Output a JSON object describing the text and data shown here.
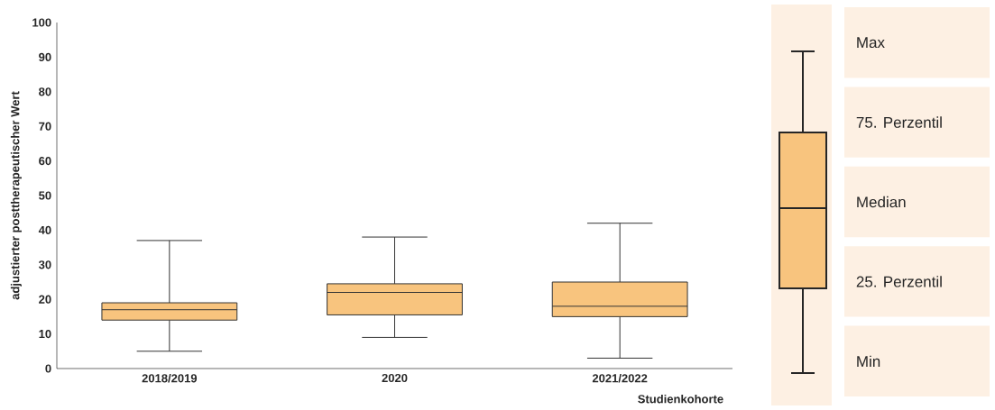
{
  "chart_data": [
    {
      "type": "box",
      "ylabel": "adjustierter posttherapeutischer Wert",
      "xlabel": "Studienkohorte",
      "categories": [
        "2018/2019",
        "2020",
        "2021/2022"
      ],
      "color": "#f8c47e",
      "boxes": [
        {
          "low": 5,
          "q1": 14,
          "median": 17,
          "q3": 19,
          "high": 37
        },
        {
          "low": 9,
          "q1": 15.5,
          "median": 22,
          "q3": 24.5,
          "high": 38
        },
        {
          "low": 3,
          "q1": 15,
          "median": 18,
          "q3": 25,
          "high": 42
        }
      ],
      "ylim": [
        0,
        100
      ],
      "yticks": [
        0,
        10,
        20,
        30,
        40,
        50,
        60,
        70,
        80,
        90,
        100
      ]
    },
    {
      "type": "other",
      "annotations": [
        "Max",
        "75. Perzentil",
        "Median",
        "25. Perzentil",
        "Min"
      ]
    }
  ]
}
